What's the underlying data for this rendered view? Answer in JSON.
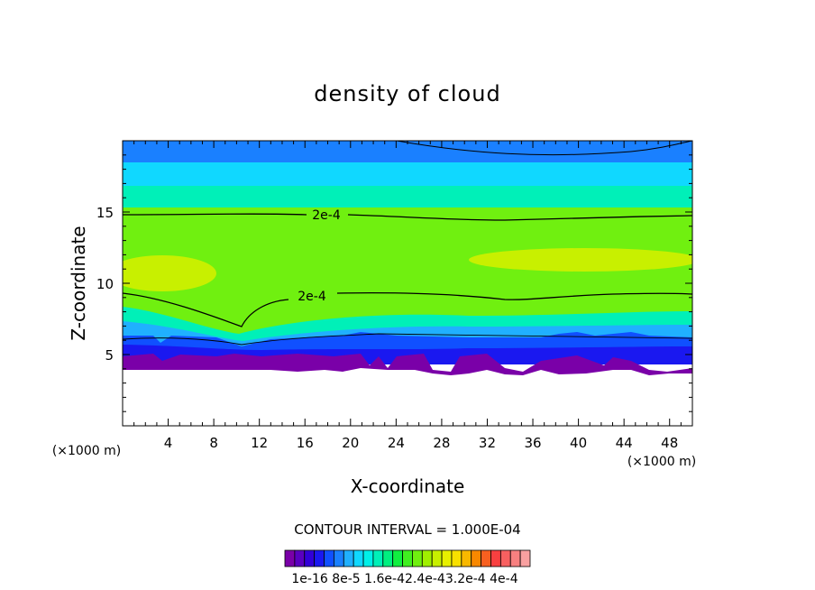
{
  "chart_data": {
    "type": "heatmap",
    "title": "density of cloud",
    "xlabel": "X-coordinate",
    "ylabel": "Z-coordinate",
    "x_unit": "(×1000 m)",
    "z_unit": "(×1000 m)",
    "xlim": [
      0,
      50
    ],
    "ylim": [
      0,
      20
    ],
    "x_ticks": [
      4,
      8,
      12,
      16,
      20,
      24,
      28,
      32,
      36,
      40,
      44,
      48
    ],
    "y_ticks": [
      5,
      10,
      15
    ],
    "contour_interval_text": "CONTOUR INTERVAL = 1.000E-04",
    "contour_labels": [
      {
        "text": "2e-4",
        "x": 17,
        "z": 14.8
      },
      {
        "text": "2e-4",
        "x": 16,
        "z": 9.2
      }
    ],
    "colorbar": {
      "colors": [
        "#7a00a8",
        "#5a00c0",
        "#3200d8",
        "#1a18f0",
        "#1050ff",
        "#1a80ff",
        "#20b0ff",
        "#10d8ff",
        "#00f0e8",
        "#00f0b8",
        "#00f080",
        "#10f040",
        "#40f020",
        "#70f010",
        "#a0f000",
        "#c8f000",
        "#e8f000",
        "#f8e000",
        "#f8b800",
        "#f88800",
        "#f86020",
        "#f84040",
        "#f86060",
        "#f88080",
        "#f8a0a0"
      ],
      "tick_labels": [
        "1e-16",
        "8e-5",
        "1.6e-4",
        "2.4e-4",
        "3.2e-4",
        "4e-4"
      ],
      "tick_label_text": "1e-16 8e-5 1.6e-42.4e-43.2e-4 4e-4"
    },
    "field_colors": {
      "top": "#1a80ff",
      "upper": "#10d8ff",
      "mid": "#00f0b8",
      "core": "#70f010",
      "max": "#c8f000",
      "low_cyan": "#20b0ff",
      "low_blue": "#1050ff",
      "base_blue": "#1a18f0",
      "base_purple": "#7a00a8"
    }
  }
}
